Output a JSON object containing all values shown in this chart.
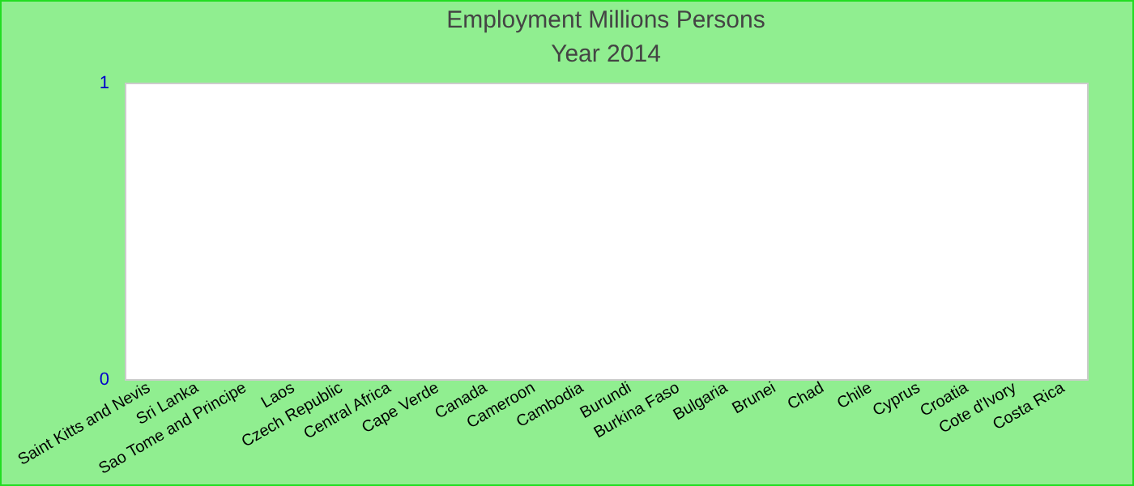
{
  "chart_data": {
    "type": "bar",
    "title": "Employment Millions Persons",
    "subtitle": "Year 2014",
    "categories": [
      "Saint Kitts and Nevis",
      "Sri Lanka",
      "Sao Tome and Principe",
      "Laos",
      "Czech Republic",
      "Central Africa",
      "Cape Verde",
      "Canada",
      "Cameroon",
      "Cambodia",
      "Burundi",
      "Burkina Faso",
      "Bulgaria",
      "Brunei",
      "Chad",
      "Chile",
      "Cyprus",
      "Croatia",
      "Cote d'Ivory",
      "Costa Rica"
    ],
    "values": [
      0,
      0,
      0,
      0,
      0,
      0,
      0,
      0,
      0,
      0,
      0,
      0,
      0,
      0,
      0,
      0,
      0,
      0,
      0,
      0
    ],
    "ylim": [
      0,
      1
    ],
    "yticks": [
      0,
      1
    ],
    "grid": false
  }
}
